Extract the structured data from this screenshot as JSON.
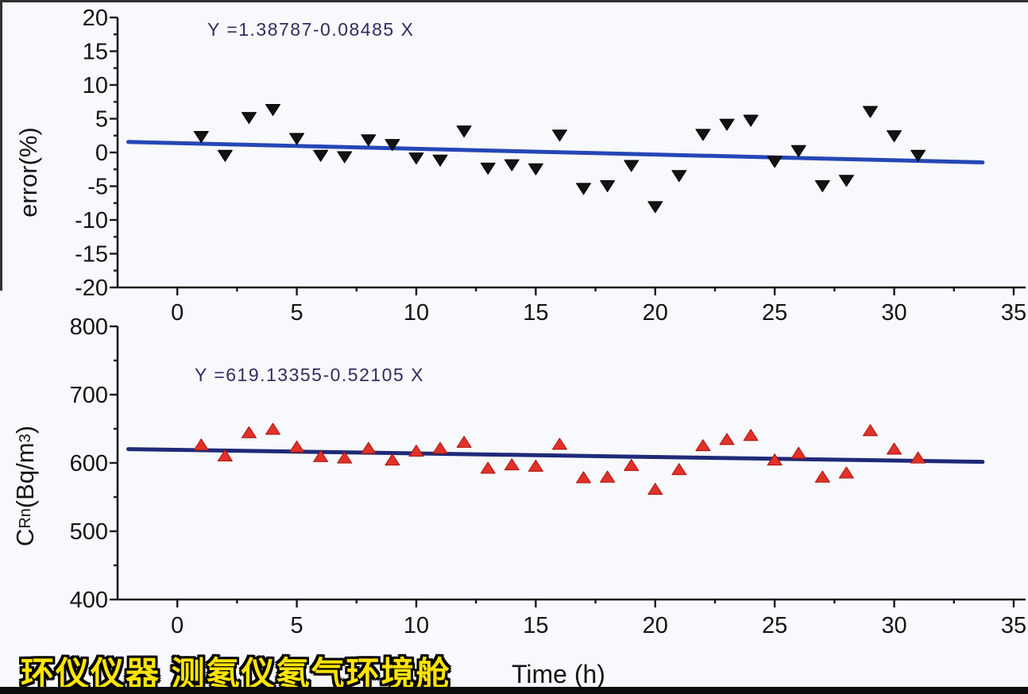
{
  "figure": {
    "background": "#f8f9fc",
    "x_axis_title": "Time (h)",
    "watermark": {
      "text": "环仪仪器 测氡仪氡气环境舱",
      "color": "#FFE400",
      "outline_color": "#000000"
    }
  },
  "chart_data": [
    {
      "type": "scatter",
      "title": "",
      "ylabel": "error(%)",
      "xlabel": "",
      "equation_label": "Y =1.38787-0.08485 X",
      "fit": {
        "intercept": 1.38787,
        "slope": -0.08485,
        "line_color": "#2547b6",
        "x_start": -2.05,
        "x_end": 33.7
      },
      "marker": {
        "shape": "triangle-down",
        "color": "#121212",
        "edge": "#000000"
      },
      "x": [
        1,
        2,
        3,
        4,
        5,
        6,
        7,
        8,
        9,
        10,
        11,
        12,
        13,
        14,
        15,
        16,
        17,
        18,
        19,
        20,
        21,
        22,
        23,
        24,
        25,
        26,
        27,
        28,
        29,
        30,
        31
      ],
      "y": [
        2.3,
        -0.5,
        5.1,
        6.3,
        2.0,
        -0.5,
        -0.7,
        1.8,
        1.1,
        -0.9,
        -1.2,
        3.1,
        -2.4,
        -1.9,
        -2.5,
        2.5,
        -5.4,
        -5.0,
        -2.0,
        -8.1,
        -3.5,
        2.6,
        4.1,
        4.7,
        -1.4,
        0.2,
        -5.0,
        -4.2,
        6.0,
        2.4,
        -0.5
      ],
      "xlim": [
        -2.5,
        35.5
      ],
      "ylim": [
        -20,
        20
      ],
      "x_major_ticks": [
        0,
        5,
        10,
        15,
        20,
        25,
        30,
        35
      ],
      "x_minor_step": 2.5,
      "y_major_ticks": [
        -20,
        -15,
        -10,
        -5,
        0,
        5,
        10,
        15,
        20
      ],
      "y_minor_step": 2.5,
      "grid": false,
      "legend": null
    },
    {
      "type": "scatter",
      "title": "",
      "ylabel": "C_Rn (Bq/m3)",
      "ylabel_parts": {
        "prefix": "C",
        "sub": "Rn",
        "mid": " (Bq/m",
        "sup": "3",
        "suffix": ")"
      },
      "xlabel": "Time (h)",
      "equation_label": "Y =619.13355-0.52105 X",
      "fit": {
        "intercept": 619.13355,
        "slope": -0.52105,
        "line_color": "#1f2a78",
        "x_start": -2.05,
        "x_end": 33.7
      },
      "marker": {
        "shape": "triangle-up",
        "color": "#e23128",
        "edge": "#a81410"
      },
      "x": [
        1,
        2,
        3,
        4,
        5,
        6,
        7,
        8,
        9,
        10,
        11,
        12,
        13,
        14,
        15,
        16,
        17,
        18,
        19,
        20,
        21,
        22,
        23,
        24,
        25,
        26,
        27,
        28,
        29,
        30,
        31
      ],
      "y": [
        627,
        611,
        645,
        650,
        624,
        610,
        608,
        622,
        605,
        618,
        622,
        631,
        593,
        598,
        596,
        628,
        579,
        580,
        597,
        562,
        591,
        626,
        635,
        641,
        605,
        615,
        580,
        586,
        648,
        621,
        608
      ],
      "xlim": [
        -2.5,
        35.5
      ],
      "ylim": [
        400,
        800
      ],
      "x_major_ticks": [
        0,
        5,
        10,
        15,
        20,
        25,
        30,
        35
      ],
      "x_minor_step": 2.5,
      "y_major_ticks": [
        400,
        500,
        600,
        700,
        800
      ],
      "y_minor_step": 50,
      "grid": false,
      "legend": null
    }
  ]
}
